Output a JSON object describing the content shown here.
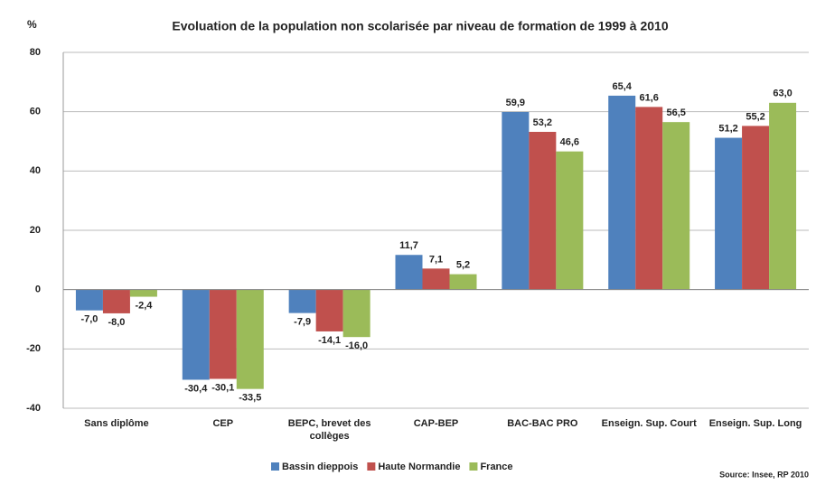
{
  "chart_data": {
    "type": "bar",
    "title": "Evoluation de la population non scolarisée par niveau de formation de 1999 à 2010",
    "y_label": "%",
    "source": "Source: Insee, RP 2010",
    "categories": [
      "Sans diplôme",
      "CEP",
      "BEPC, brevet des collèges",
      "CAP-BEP",
      "BAC-BAC PRO",
      "Enseign. Sup. Court",
      "Enseign. Sup. Long"
    ],
    "series": [
      {
        "name": "Bassin dieppois",
        "color": "#4f81bd",
        "values": [
          -7.0,
          -30.4,
          -7.9,
          11.7,
          59.9,
          65.4,
          51.2
        ],
        "value_labels": [
          "-7,0",
          "-30,4",
          "-7,9",
          "11,7",
          "59,9",
          "65,4",
          "51,2"
        ]
      },
      {
        "name": "Haute Normandie",
        "color": "#c0504d",
        "values": [
          -8.0,
          -30.1,
          -14.1,
          7.1,
          53.2,
          61.6,
          55.2
        ],
        "value_labels": [
          "-8,0",
          "-30,1",
          "-14,1",
          "7,1",
          "53,2",
          "61,6",
          "55,2"
        ]
      },
      {
        "name": "France",
        "color": "#9bbb59",
        "values": [
          -2.4,
          -33.5,
          -16.0,
          5.2,
          46.6,
          56.5,
          63.0
        ],
        "value_labels": [
          "-2,4",
          "-33,5",
          "-16,0",
          "5,2",
          "46,6",
          "56,5",
          "63,0"
        ]
      }
    ],
    "ylim": [
      -40,
      80
    ],
    "yticks": [
      -40,
      -20,
      0,
      20,
      40,
      60,
      80
    ],
    "grid": true,
    "legend": "bottom"
  }
}
